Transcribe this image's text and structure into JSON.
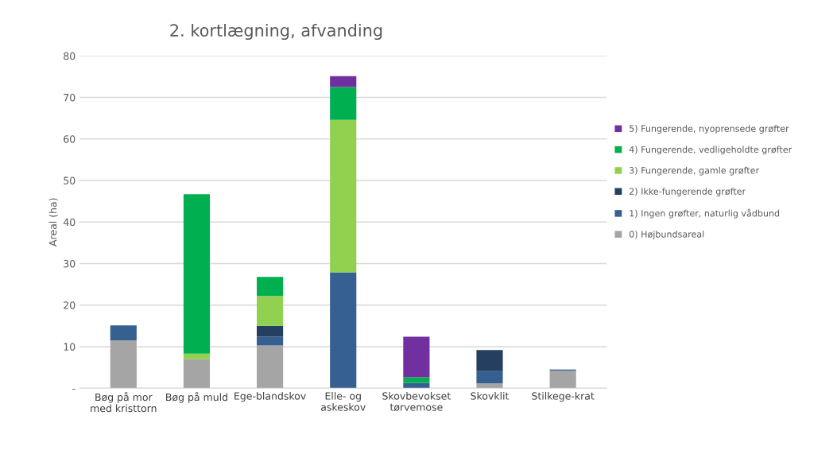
{
  "chart_data": {
    "type": "bar",
    "title": "2. kortlægning, afvanding",
    "ylabel": "Areal (ha)",
    "categories": [
      "Bøg på mor\nmed kristtorn",
      "Bøg på muld",
      "Ege-blandskov",
      "Elle- og\naskeskov",
      "Skovbevokset\ntørvemose",
      "Skovklit",
      "Stilkege-krat"
    ],
    "stacked": true,
    "series": [
      {
        "name": "0) Højbundsareal",
        "color": "#a5a5a5",
        "values": [
          11.5,
          7.0,
          10.3,
          null,
          null,
          1.2,
          4.2
        ]
      },
      {
        "name": "1) Ingen grøfter, naturlig vådbund",
        "color": "#376092",
        "values": [
          3.6,
          null,
          2.1,
          27.9,
          1.3,
          2.9,
          0.3
        ]
      },
      {
        "name": "2) Ikke-fungerende grøfter",
        "color": "#243f60",
        "values": [
          null,
          null,
          2.6,
          null,
          null,
          5.1,
          null
        ]
      },
      {
        "name": "3) Fungerende, gamle grøfter",
        "color": "#92d050",
        "values": [
          null,
          1.3,
          7.2,
          36.7,
          null,
          null,
          null
        ]
      },
      {
        "name": "4) Fungerende, vedligeholdte grøfter",
        "color": "#00b050",
        "values": [
          null,
          38.4,
          4.6,
          7.9,
          1.3,
          null,
          null
        ]
      },
      {
        "name": "5) Fungerende, nyoprensede grøfter",
        "color": "#7030a0",
        "values": [
          null,
          null,
          null,
          2.6,
          9.8,
          null,
          null
        ]
      }
    ],
    "ylim": [
      0,
      80
    ],
    "yticks": [
      {
        "value": 0,
        "label": "-"
      },
      10,
      20,
      30,
      40,
      50,
      60,
      70,
      80
    ],
    "grid": "y",
    "legend": "right"
  }
}
